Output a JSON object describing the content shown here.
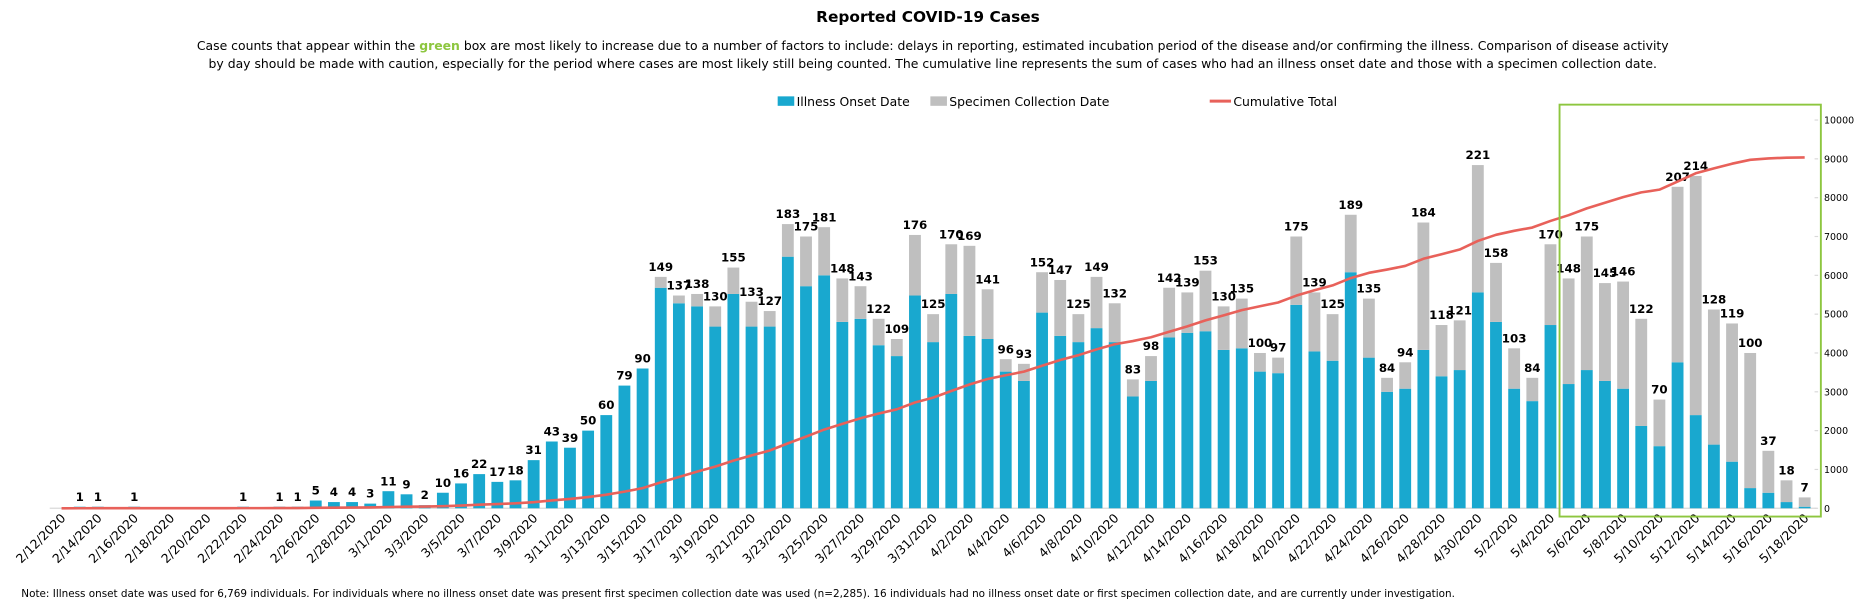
{
  "chart_data": {
    "type": "stacked_bar_line",
    "title": "Reported COVID-19 Cases",
    "subtitle_parts": [
      "Case counts that appear within the ",
      "green",
      " box are most likely to increase due to a number of factors to include: delays in reporting, estimated incubation period of the disease and/or confirming the illness. Comparison of disease activity",
      "by day should be made with caution, especially for the period where cases are most likely still being counted. The cumulative line represents the sum of cases who had an illness onset date and those with a specimen collection date."
    ],
    "note": "Note: Illness onset date was used for 6,769 individuals. For individuals where no illness onset date was present first specimen collection date was used (n=2,285). 16 individuals had no illness onset date or first specimen collection date, and are currently under investigation.",
    "categories": [
      "2/12/2020",
      null,
      "2/14/2020",
      null,
      "2/16/2020",
      null,
      "2/18/2020",
      null,
      "2/20/2020",
      null,
      "2/22/2020",
      null,
      "2/24/2020",
      null,
      "2/26/2020",
      null,
      "2/28/2020",
      null,
      "3/1/2020",
      null,
      "3/3/2020",
      null,
      "3/5/2020",
      null,
      "3/7/2020",
      null,
      "3/9/2020",
      null,
      "3/11/2020",
      null,
      "3/13/2020",
      null,
      "3/15/2020",
      null,
      "3/17/2020",
      null,
      "3/19/2020",
      null,
      "3/21/2020",
      null,
      "3/23/2020",
      null,
      "3/25/2020",
      null,
      "3/27/2020",
      null,
      "3/29/2020",
      null,
      "3/31/2020",
      null,
      "4/2/2020",
      null,
      "4/4/2020",
      null,
      "4/6/2020",
      null,
      "4/8/2020",
      null,
      "4/10/2020",
      null,
      "4/12/2020",
      null,
      "4/14/2020",
      null,
      "4/16/2020",
      null,
      "4/18/2020",
      null,
      "4/20/2020",
      null,
      "4/22/2020",
      null,
      "4/24/2020",
      null,
      "4/26/2020",
      null,
      "4/28/2020",
      null,
      "4/30/2020",
      null,
      "5/2/2020",
      null,
      "5/4/2020",
      null,
      "5/6/2020",
      null,
      "5/8/2020",
      null,
      "5/10/2020",
      null,
      "5/12/2020",
      null,
      "5/14/2020",
      null,
      "5/16/2020",
      null,
      "5/18/2020"
    ],
    "series": [
      {
        "name": "Illness Onset Date",
        "color": "#19a8cf",
        "kind": "bar",
        "values": [
          0,
          1,
          1,
          0,
          1,
          0,
          0,
          0,
          0,
          0,
          1,
          0,
          1,
          1,
          5,
          4,
          4,
          3,
          11,
          9,
          2,
          10,
          16,
          22,
          17,
          18,
          31,
          43,
          39,
          50,
          60,
          79,
          90,
          142,
          132,
          130,
          117,
          138,
          117,
          117,
          162,
          143,
          150,
          120,
          122,
          105,
          98,
          137,
          107,
          138,
          111,
          109,
          88,
          82,
          126,
          111,
          107,
          116,
          107,
          72,
          82,
          110,
          113,
          114,
          102,
          103,
          88,
          87,
          131,
          101,
          95,
          152,
          97,
          75,
          77,
          102,
          85,
          89,
          139,
          120,
          77,
          69,
          118,
          80,
          89,
          82,
          77,
          53,
          40,
          94,
          60,
          41,
          30,
          13,
          10,
          4,
          1
        ]
      },
      {
        "name": "Specimen Collection Date",
        "color": "#bfbfbf",
        "kind": "bar",
        "values": [
          0,
          0,
          0,
          0,
          0,
          0,
          0,
          0,
          0,
          0,
          0,
          0,
          0,
          0,
          0,
          0,
          0,
          0,
          0,
          0,
          0,
          0,
          0,
          0,
          0,
          0,
          0,
          0,
          0,
          0,
          0,
          0,
          0,
          7,
          5,
          8,
          13,
          17,
          16,
          10,
          21,
          32,
          31,
          28,
          21,
          17,
          11,
          39,
          18,
          32,
          58,
          32,
          8,
          11,
          26,
          36,
          18,
          33,
          25,
          11,
          16,
          32,
          26,
          39,
          28,
          32,
          12,
          10,
          44,
          38,
          30,
          37,
          38,
          9,
          17,
          82,
          33,
          32,
          82,
          38,
          26,
          15,
          52,
          68,
          86,
          63,
          69,
          69,
          30,
          113,
          154,
          87,
          89,
          87,
          27,
          14,
          6
        ]
      },
      {
        "name": "Cumulative Total",
        "color": "#e8615a",
        "kind": "line",
        "axis": "y2",
        "values": [
          0,
          1,
          2,
          2,
          3,
          3,
          3,
          3,
          3,
          3,
          4,
          4,
          5,
          6,
          11,
          15,
          19,
          22,
          33,
          42,
          44,
          54,
          70,
          92,
          109,
          127,
          158,
          201,
          240,
          290,
          350,
          429,
          519,
          668,
          805,
          943,
          1073,
          1228,
          1361,
          1488,
          1671,
          1846,
          2027,
          2175,
          2318,
          2440,
          2549,
          2725,
          2850,
          3020,
          3189,
          3330,
          3426,
          3519,
          3671,
          3818,
          3943,
          4092,
          4224,
          4307,
          4405,
          4547,
          4686,
          4839,
          4969,
          5104,
          5204,
          5301,
          5476,
          5615,
          5740,
          5929,
          6064,
          6148,
          6242,
          6426,
          6544,
          6665,
          6886,
          7044,
          7147,
          7231,
          7401,
          7549,
          7724,
          7869,
          8015,
          8137,
          8207,
          8414,
          8628,
          8756,
          8875,
          8975,
          9012,
          9030,
          9037
        ]
      }
    ],
    "totals": [
      null,
      1,
      1,
      null,
      1,
      null,
      null,
      null,
      null,
      null,
      1,
      null,
      1,
      1,
      5,
      4,
      4,
      3,
      11,
      9,
      2,
      10,
      16,
      22,
      17,
      18,
      31,
      43,
      39,
      50,
      60,
      79,
      90,
      149,
      137,
      138,
      130,
      155,
      133,
      127,
      183,
      175,
      181,
      148,
      143,
      122,
      109,
      176,
      125,
      170,
      169,
      141,
      96,
      93,
      152,
      147,
      125,
      149,
      132,
      83,
      98,
      142,
      139,
      153,
      130,
      135,
      100,
      97,
      175,
      139,
      125,
      189,
      135,
      84,
      94,
      184,
      118,
      121,
      221,
      158,
      103,
      84,
      170,
      148,
      175,
      145,
      146,
      122,
      70,
      207,
      214,
      128,
      119,
      100,
      37,
      18,
      7
    ],
    "ylim": [
      0,
      250
    ],
    "y2lim": [
      0,
      10000
    ],
    "y2ticks": [
      0,
      1000,
      2000,
      3000,
      4000,
      5000,
      6000,
      7000,
      8000,
      9000,
      10000
    ],
    "highlight_color": "#8dc63f"
  }
}
